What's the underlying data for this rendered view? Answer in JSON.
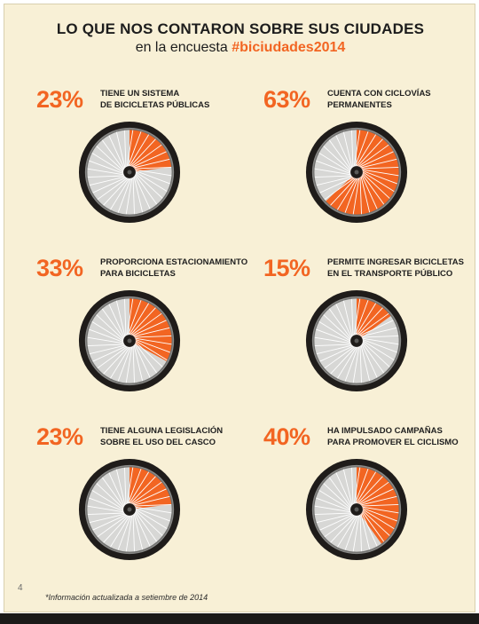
{
  "header": {
    "title": "LO QUE NOS CONTARON SOBRE SUS CIUDADES",
    "subtitle_prefix": "en la encuesta",
    "subtitle_hashtag": "#biciudades2014"
  },
  "colors": {
    "accent": "#f26522",
    "tire": "#1f1c1a",
    "spoke_bg": "#d7d7d5",
    "background": "#f8f0d6"
  },
  "chart_data": {
    "type": "pie",
    "title": "LO QUE NOS CONTARON SOBRE SUS CIUDADES",
    "subtitle": "en la encuesta #biciudades2014",
    "unit": "%",
    "items": [
      {
        "value": 23,
        "label": "23%",
        "text_lines": [
          "TIENE UN SISTEMA",
          "DE BICICLETAS PÚBLICAS"
        ]
      },
      {
        "value": 63,
        "label": "63%",
        "text_lines": [
          "CUENTA CON CICLOVÍAS",
          "PERMANENTES"
        ]
      },
      {
        "value": 33,
        "label": "33%",
        "text_lines": [
          "PROPORCIONA ESTACIONAMIENTO",
          "PARA BICICLETAS"
        ]
      },
      {
        "value": 15,
        "label": "15%",
        "text_lines": [
          "PERMITE INGRESAR BICICLETAS",
          "EN EL TRANSPORTE PÚBLICO"
        ]
      },
      {
        "value": 23,
        "label": "23%",
        "text_lines": [
          "TIENE ALGUNA LEGISLACIÓN",
          "SOBRE EL USO DEL CASCO"
        ]
      },
      {
        "value": 40,
        "label": "40%",
        "text_lines": [
          "HA IMPULSADO CAMPAÑAS",
          "PARA PROMOVER EL CICLISMO"
        ]
      }
    ]
  },
  "footer": {
    "page_number": "4",
    "note": "*Información actualizada a setiembre de 2014"
  }
}
